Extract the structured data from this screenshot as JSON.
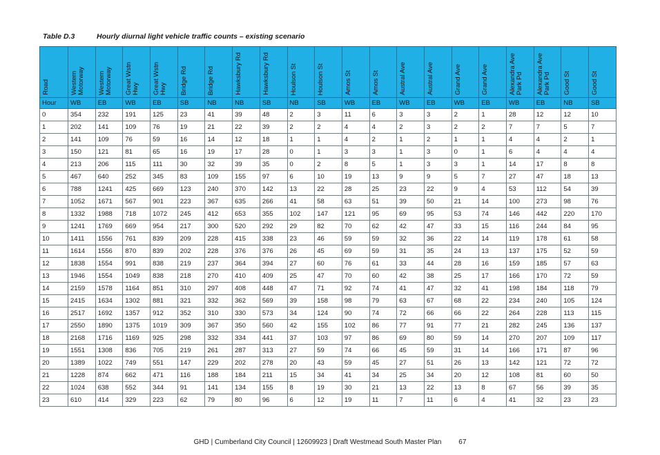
{
  "caption": {
    "number": "Table D.3",
    "title": "Hourly diurnal light vehicle traffic counts – existing scenario"
  },
  "table": {
    "columns": [
      "Road",
      "Western Motorway",
      "Western Motorway",
      "Great Wstn Hwy",
      "Great Wstn Hwy",
      "Bridge Rd",
      "Bridge Rd",
      "Hawksbury Rd",
      "Hawksbury Rd",
      "Houlson St",
      "Houlson St",
      "Amos St",
      "Amos St",
      "Austral Ave",
      "Austral Ave",
      "Grand Ave",
      "Grand Ave",
      "Alexandra Ave Park Pd",
      "Alexandra Ave Park Pd",
      "Good St",
      "Good St"
    ],
    "directions": [
      "Hour",
      "WB",
      "EB",
      "WB",
      "EB",
      "SB",
      "NB",
      "NB",
      "SB",
      "NB",
      "SB",
      "WB",
      "EB",
      "WB",
      "EB",
      "WB",
      "EB",
      "WB",
      "EB",
      "NB",
      "SB"
    ],
    "rows": [
      [
        "0",
        "354",
        "232",
        "191",
        "125",
        "23",
        "41",
        "39",
        "48",
        "2",
        "3",
        "11",
        "6",
        "3",
        "3",
        "2",
        "1",
        "28",
        "12",
        "12",
        "10"
      ],
      [
        "1",
        "202",
        "141",
        "109",
        "76",
        "19",
        "21",
        "22",
        "39",
        "2",
        "2",
        "4",
        "4",
        "2",
        "3",
        "2",
        "2",
        "7",
        "7",
        "5",
        "7"
      ],
      [
        "2",
        "141",
        "109",
        "76",
        "59",
        "16",
        "14",
        "12",
        "18",
        "1",
        "1",
        "4",
        "2",
        "1",
        "2",
        "1",
        "1",
        "4",
        "4",
        "2",
        "1"
      ],
      [
        "3",
        "150",
        "121",
        "81",
        "65",
        "16",
        "19",
        "17",
        "28",
        "0",
        "1",
        "3",
        "3",
        "1",
        "3",
        "0",
        "1",
        "6",
        "4",
        "4",
        "4"
      ],
      [
        "4",
        "213",
        "206",
        "115",
        "111",
        "30",
        "32",
        "39",
        "35",
        "0",
        "2",
        "8",
        "5",
        "1",
        "3",
        "3",
        "1",
        "14",
        "17",
        "8",
        "8"
      ],
      [
        "5",
        "467",
        "640",
        "252",
        "345",
        "83",
        "109",
        "155",
        "97",
        "6",
        "10",
        "19",
        "13",
        "9",
        "9",
        "5",
        "7",
        "27",
        "47",
        "18",
        "13"
      ],
      [
        "6",
        "788",
        "1241",
        "425",
        "669",
        "123",
        "240",
        "370",
        "142",
        "13",
        "22",
        "28",
        "25",
        "23",
        "22",
        "9",
        "4",
        "53",
        "112",
        "54",
        "39"
      ],
      [
        "7",
        "1052",
        "1671",
        "567",
        "901",
        "223",
        "367",
        "635",
        "266",
        "41",
        "58",
        "63",
        "51",
        "39",
        "50",
        "21",
        "14",
        "100",
        "273",
        "98",
        "76"
      ],
      [
        "8",
        "1332",
        "1988",
        "718",
        "1072",
        "245",
        "412",
        "653",
        "355",
        "102",
        "147",
        "121",
        "95",
        "69",
        "95",
        "53",
        "74",
        "146",
        "442",
        "220",
        "170"
      ],
      [
        "9",
        "1241",
        "1769",
        "669",
        "954",
        "217",
        "300",
        "520",
        "292",
        "29",
        "82",
        "70",
        "62",
        "42",
        "47",
        "33",
        "15",
        "116",
        "244",
        "84",
        "95"
      ],
      [
        "10",
        "1411",
        "1556",
        "761",
        "839",
        "209",
        "228",
        "415",
        "338",
        "23",
        "46",
        "59",
        "59",
        "32",
        "36",
        "22",
        "14",
        "119",
        "178",
        "61",
        "58"
      ],
      [
        "11",
        "1614",
        "1556",
        "870",
        "839",
        "202",
        "228",
        "376",
        "376",
        "26",
        "45",
        "69",
        "59",
        "31",
        "35",
        "24",
        "13",
        "137",
        "175",
        "52",
        "59"
      ],
      [
        "12",
        "1838",
        "1554",
        "991",
        "838",
        "219",
        "237",
        "364",
        "394",
        "27",
        "60",
        "76",
        "61",
        "33",
        "44",
        "28",
        "16",
        "159",
        "185",
        "57",
        "63"
      ],
      [
        "13",
        "1946",
        "1554",
        "1049",
        "838",
        "218",
        "270",
        "410",
        "409",
        "25",
        "47",
        "70",
        "60",
        "42",
        "38",
        "25",
        "17",
        "166",
        "170",
        "72",
        "59"
      ],
      [
        "14",
        "2159",
        "1578",
        "1164",
        "851",
        "310",
        "297",
        "408",
        "448",
        "47",
        "71",
        "92",
        "74",
        "41",
        "47",
        "32",
        "41",
        "198",
        "184",
        "118",
        "79"
      ],
      [
        "15",
        "2415",
        "1634",
        "1302",
        "881",
        "321",
        "332",
        "362",
        "569",
        "39",
        "158",
        "98",
        "79",
        "63",
        "67",
        "68",
        "22",
        "234",
        "240",
        "105",
        "124"
      ],
      [
        "16",
        "2517",
        "1692",
        "1357",
        "912",
        "352",
        "310",
        "330",
        "573",
        "34",
        "124",
        "90",
        "74",
        "72",
        "66",
        "66",
        "22",
        "264",
        "228",
        "113",
        "115"
      ],
      [
        "17",
        "2550",
        "1890",
        "1375",
        "1019",
        "309",
        "367",
        "350",
        "560",
        "42",
        "155",
        "102",
        "86",
        "77",
        "91",
        "77",
        "21",
        "282",
        "245",
        "136",
        "137"
      ],
      [
        "18",
        "2168",
        "1716",
        "1169",
        "925",
        "298",
        "332",
        "334",
        "441",
        "37",
        "103",
        "97",
        "86",
        "69",
        "80",
        "59",
        "14",
        "270",
        "207",
        "109",
        "117"
      ],
      [
        "19",
        "1551",
        "1308",
        "836",
        "705",
        "219",
        "261",
        "287",
        "313",
        "27",
        "59",
        "74",
        "66",
        "45",
        "59",
        "31",
        "14",
        "166",
        "171",
        "87",
        "96"
      ],
      [
        "20",
        "1389",
        "1022",
        "749",
        "551",
        "147",
        "229",
        "202",
        "278",
        "20",
        "43",
        "59",
        "45",
        "27",
        "51",
        "26",
        "13",
        "142",
        "121",
        "72",
        "72"
      ],
      [
        "21",
        "1228",
        "874",
        "662",
        "471",
        "116",
        "188",
        "184",
        "211",
        "15",
        "34",
        "41",
        "34",
        "25",
        "34",
        "20",
        "12",
        "108",
        "81",
        "60",
        "50"
      ],
      [
        "22",
        "1024",
        "638",
        "552",
        "344",
        "91",
        "141",
        "134",
        "155",
        "8",
        "19",
        "30",
        "21",
        "13",
        "22",
        "13",
        "8",
        "67",
        "56",
        "39",
        "35"
      ],
      [
        "23",
        "610",
        "414",
        "329",
        "223",
        "62",
        "79",
        "80",
        "96",
        "6",
        "12",
        "19",
        "11",
        "7",
        "11",
        "6",
        "4",
        "41",
        "32",
        "23",
        "23"
      ]
    ]
  },
  "footer": {
    "text": "GHD | Cumberland City Council | 12609923 | Draft Westmead South Master Plan",
    "page": "67"
  },
  "colors": {
    "header_fill": "#21b0e6",
    "grid_line": "#6b7f8c"
  }
}
